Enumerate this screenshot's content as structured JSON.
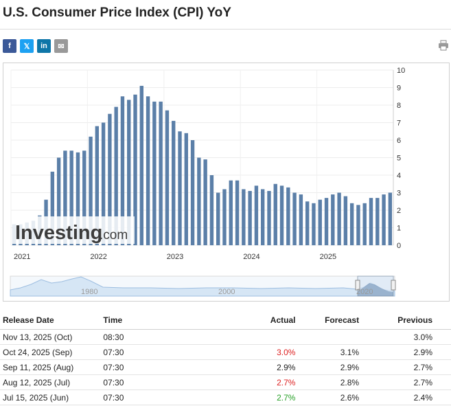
{
  "title": "U.S. Consumer Price Index (CPI) YoY",
  "share": {
    "facebook": "f",
    "twitter": "𝕏",
    "linkedin": "in",
    "email": "✉"
  },
  "colors": {
    "bar": "#5b7fa8",
    "up": "#dd2020",
    "down": "#26a026",
    "nav": "#b8d0e8"
  },
  "chart_data": {
    "type": "bar",
    "ylim": [
      0,
      10
    ],
    "yticks": [
      "0",
      "1",
      "2",
      "3",
      "4",
      "5",
      "6",
      "7",
      "8",
      "9",
      "10"
    ],
    "xlabels": [
      "2021",
      "2022",
      "2023",
      "2024",
      "2025"
    ],
    "navigator_labels": [
      "1980",
      "2000",
      "2020"
    ],
    "values": [
      1.2,
      1.2,
      1.3,
      1.4,
      1.7,
      2.6,
      4.2,
      5.0,
      5.4,
      5.4,
      5.3,
      5.4,
      6.2,
      6.8,
      7.0,
      7.5,
      7.9,
      8.5,
      8.3,
      8.6,
      9.1,
      8.5,
      8.2,
      8.2,
      7.7,
      7.1,
      6.5,
      6.4,
      6.0,
      5.0,
      4.9,
      4.0,
      3.0,
      3.2,
      3.7,
      3.7,
      3.2,
      3.1,
      3.4,
      3.2,
      3.1,
      3.5,
      3.4,
      3.3,
      3.0,
      2.9,
      2.5,
      2.4,
      2.6,
      2.7,
      2.9,
      3.0,
      2.8,
      2.4,
      2.3,
      2.4,
      2.7,
      2.7,
      2.9,
      3.0
    ]
  },
  "watermark": {
    "brand": "Investing",
    "suffix": ".com"
  },
  "table": {
    "headers": {
      "date": "Release Date",
      "time": "Time",
      "actual": "Actual",
      "forecast": "Forecast",
      "previous": "Previous"
    },
    "rows": [
      {
        "date": "Nov 13, 2025 (Oct)",
        "time": "08:30",
        "actual": "",
        "forecast": "",
        "previous": "3.0%",
        "tone": ""
      },
      {
        "date": "Oct 24, 2025 (Sep)",
        "time": "07:30",
        "actual": "3.0%",
        "forecast": "3.1%",
        "previous": "2.9%",
        "tone": "up"
      },
      {
        "date": "Sep 11, 2025 (Aug)",
        "time": "07:30",
        "actual": "2.9%",
        "forecast": "2.9%",
        "previous": "2.7%",
        "tone": ""
      },
      {
        "date": "Aug 12, 2025 (Jul)",
        "time": "07:30",
        "actual": "2.7%",
        "forecast": "2.8%",
        "previous": "2.7%",
        "tone": "up"
      },
      {
        "date": "Jul 15, 2025 (Jun)",
        "time": "07:30",
        "actual": "2.7%",
        "forecast": "2.6%",
        "previous": "2.4%",
        "tone": "down"
      }
    ]
  }
}
